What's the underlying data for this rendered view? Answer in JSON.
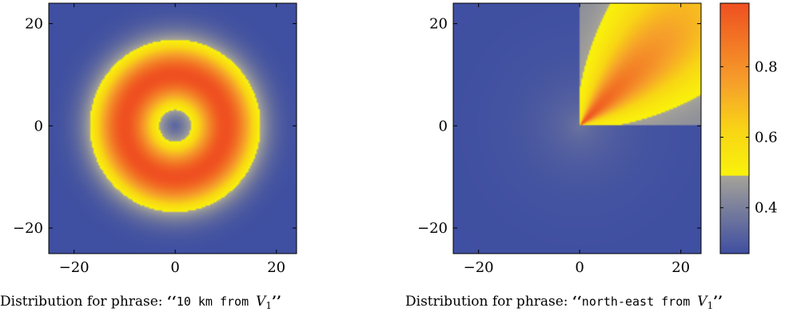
{
  "chart_data": [
    {
      "type": "heatmap",
      "name": "ring distribution",
      "pattern": "ring",
      "center": [
        0,
        0
      ],
      "ring_radius": 10,
      "ring_width": 4.5,
      "value_range": [
        0.27,
        0.98
      ],
      "xlim": [
        -25,
        24
      ],
      "ylim": [
        -25,
        24
      ],
      "xticks": [
        -20,
        0,
        20
      ],
      "yticks": [
        -20,
        0,
        20
      ],
      "xtick_labels": [
        "−20",
        "0",
        "20"
      ],
      "ytick_labels": [
        "−20",
        "0",
        "20"
      ],
      "caption": {
        "prefix": "Distribution for phrase: ",
        "open_quote": "‘‘",
        "mono": "10 km from ",
        "italic": "V",
        "sub": "1",
        "close_quote": "’’"
      }
    },
    {
      "type": "heatmap",
      "name": "direction distribution",
      "pattern": "north-east",
      "center": [
        0,
        0
      ],
      "direction_deg": 45,
      "value_range": [
        0.27,
        0.98
      ],
      "xlim": [
        -25,
        24
      ],
      "ylim": [
        -25,
        24
      ],
      "xticks": [
        -20,
        0,
        20
      ],
      "yticks": [
        -20,
        0,
        20
      ],
      "xtick_labels": [
        "−20",
        "0",
        "20"
      ],
      "ytick_labels": [
        "−20",
        "0",
        "20"
      ],
      "caption": {
        "prefix": "Distribution for phrase: ",
        "open_quote": "‘‘",
        "mono": "north-east from ",
        "italic": "V",
        "sub": "1",
        "close_quote": "’’"
      }
    }
  ],
  "colorbar": {
    "range": [
      0.27,
      0.98
    ],
    "ticks": [
      0.4,
      0.6,
      0.8
    ],
    "tick_labels": [
      "0.4",
      "0.6",
      "0.8"
    ],
    "stops": [
      {
        "value": 0.27,
        "color": "#3f4fa1"
      },
      {
        "value": 0.4,
        "color": "#7a7f9c"
      },
      {
        "value": 0.49,
        "color": "#a5a399"
      },
      {
        "value": 0.492,
        "color": "#f9f20b"
      },
      {
        "value": 0.62,
        "color": "#f8d515"
      },
      {
        "value": 0.75,
        "color": "#f6a12a"
      },
      {
        "value": 0.98,
        "color": "#ef5020"
      }
    ]
  }
}
